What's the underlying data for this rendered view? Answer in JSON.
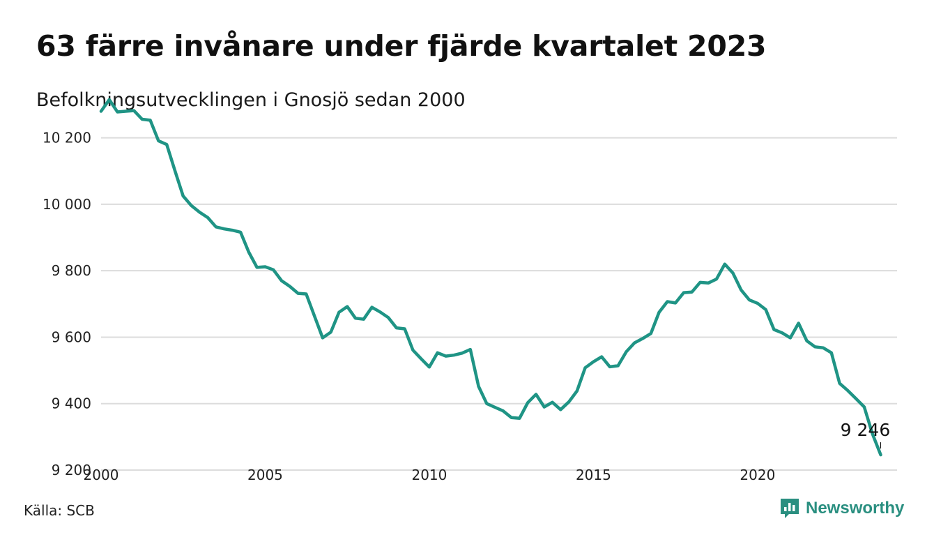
{
  "title": "63 färre invånare under fjärde kvartalet 2023",
  "subtitle": "Befolkningsutvecklingen i Gnosjö sedan 2000",
  "source": "Källa: SCB",
  "brand": {
    "name": "Newsworthy",
    "color": "#2a8f80",
    "icon": "bar-chart-speech-bubble-icon"
  },
  "colors": {
    "line": "#1f9485",
    "grid": "#dcdcdc",
    "text": "#111111"
  },
  "chart_data": {
    "type": "line",
    "title": "63 färre invånare under fjärde kvartalet 2023",
    "subtitle": "Befolkningsutvecklingen i Gnosjö sedan 2000",
    "xlabel": "",
    "ylabel": "",
    "xlim": [
      2000,
      2024.25
    ],
    "ylim": [
      9200,
      10300
    ],
    "yticks": [
      9200,
      9400,
      9600,
      9800,
      10000,
      10200
    ],
    "ytick_labels": [
      "9 200",
      "9 400",
      "9 600",
      "9 800",
      "10 000",
      "10 200"
    ],
    "xticks": [
      2000,
      2005,
      2010,
      2015,
      2020
    ],
    "xtick_labels": [
      "2000",
      "2005",
      "2010",
      "2015",
      "2020"
    ],
    "grid": "horizontal",
    "legend": "none",
    "x_step": "quarterly",
    "x_start": 2000.0,
    "end_label": {
      "x": 2023.75,
      "value": 9246,
      "text": "9 246"
    },
    "series": [
      {
        "values": [
          10280,
          10315,
          10278,
          10280,
          10282,
          10256,
          10253,
          10191,
          10180,
          10101,
          10025,
          9996,
          9976,
          9960,
          9932,
          9926,
          9922,
          9916,
          9856,
          9810,
          9812,
          9803,
          9770,
          9753,
          9732,
          9730,
          9664,
          9598,
          9615,
          9675,
          9692,
          9657,
          9654,
          9690,
          9676,
          9659,
          9628,
          9625,
          9561,
          9535,
          9510,
          9553,
          9543,
          9546,
          9552,
          9563,
          9452,
          9400,
          9389,
          9378,
          9358,
          9356,
          9403,
          9428,
          9390,
          9404,
          9382,
          9405,
          9438,
          9508,
          9526,
          9541,
          9511,
          9514,
          9556,
          9583,
          9596,
          9611,
          9675,
          9707,
          9703,
          9734,
          9736,
          9765,
          9763,
          9775,
          9820,
          9793,
          9742,
          9712,
          9702,
          9683,
          9623,
          9613,
          9598,
          9642,
          9589,
          9571,
          9568,
          9553,
          9461,
          9439,
          9415,
          9390,
          9309,
          9246
        ]
      }
    ]
  }
}
